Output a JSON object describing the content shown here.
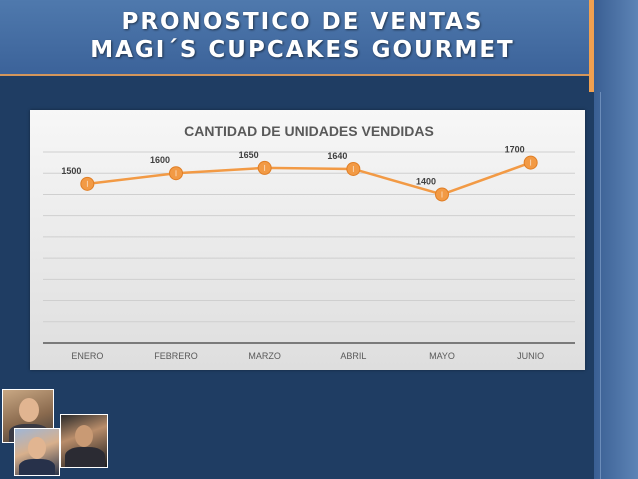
{
  "slide": {
    "title_line1": "PRONOSTICO DE VENTAS",
    "title_line2": "MAGI´S CUPCAKES GOURMET"
  },
  "colors": {
    "background": "#1f3d63",
    "header": "#4a74a8",
    "accent": "#f0a050",
    "series": "#f29a45"
  },
  "chart_data": {
    "type": "line",
    "title": "CANTIDAD DE UNIDADES VENDIDAS",
    "categories": [
      "ENERO",
      "FEBRERO",
      "MARZO",
      "ABRIL",
      "MAYO",
      "JUNIO"
    ],
    "series": [
      {
        "values": [
          1500,
          1600,
          1650,
          1640,
          1400,
          1700
        ]
      }
    ],
    "ylim": [
      0,
      1800
    ],
    "grid": true,
    "legend": "none",
    "data_labels": true,
    "xlabel": "",
    "ylabel": ""
  }
}
